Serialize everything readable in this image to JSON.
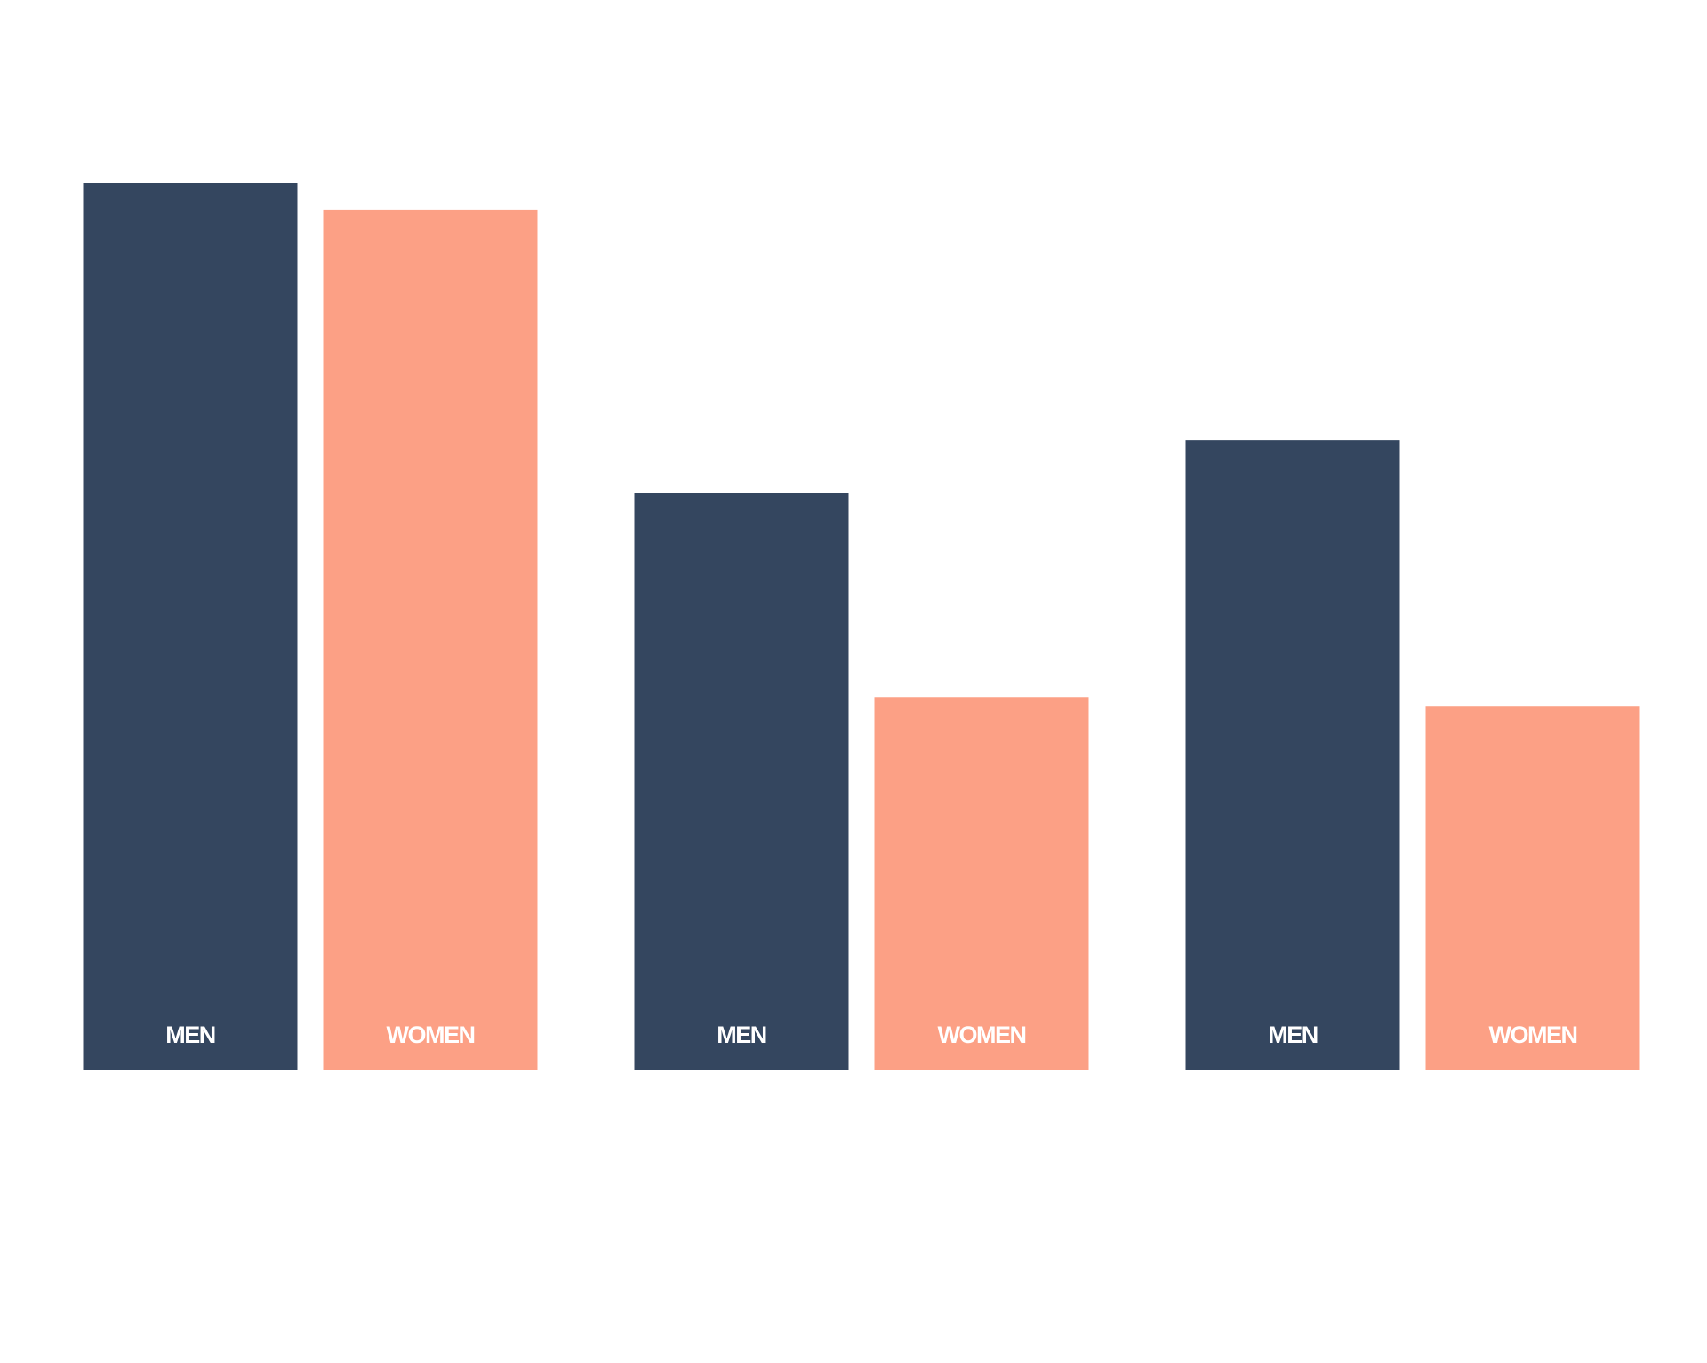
{
  "chart_data": {
    "type": "bar",
    "categories": [
      null,
      null,
      null
    ],
    "series": [
      {
        "name": "MEN",
        "color": "#34465f",
        "values": [
          100,
          65,
          71
        ]
      },
      {
        "name": "WOMEN",
        "color": "#fca085",
        "values": [
          97,
          42,
          41
        ]
      }
    ],
    "ylim": [
      0,
      100
    ]
  }
}
